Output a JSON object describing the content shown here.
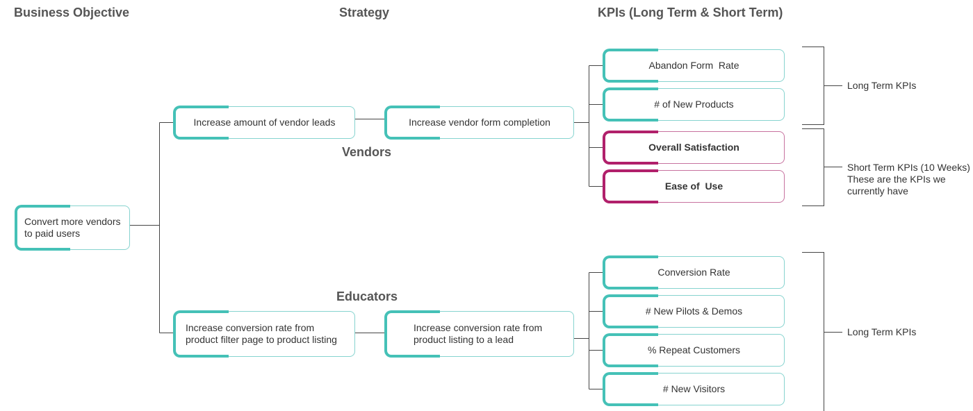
{
  "headers": {
    "business_objective": "Business Objective",
    "strategy": "Strategy",
    "kpis": "KPIs (Long Term & Short Term)"
  },
  "objective": {
    "line1": "Convert more vendors",
    "line2": "to paid users"
  },
  "groups": {
    "vendors": "Vendors",
    "educators": "Educators"
  },
  "vendors": {
    "strategy1": "Increase amount of vendor leads",
    "strategy2": "Increase vendor form completion",
    "kpis": [
      "Abandon Form  Rate",
      "# of New Products",
      "Overall Satisfaction",
      "Ease of  Use"
    ]
  },
  "educators": {
    "strategy1_line1": "Increase conversion rate from",
    "strategy1_line2": "product filter page to product listing",
    "strategy2_line1": "Increase conversion rate from",
    "strategy2_line2": "product listing to a lead",
    "kpis": [
      "Conversion Rate",
      "# New Pilots & Demos",
      "% Repeat Customers",
      "# New Visitors"
    ]
  },
  "notes": {
    "vendors_long": "Long Term KPIs",
    "short_line1": "Short Term KPIs (10 Weeks)",
    "short_line2": "These are the KPIs we",
    "short_line3": "currently have",
    "educators_long": "Long Term KPIs"
  },
  "colors": {
    "teal_accent": "#45c1b7",
    "magenta_accent": "#b1206b",
    "connector": "#444444"
  }
}
